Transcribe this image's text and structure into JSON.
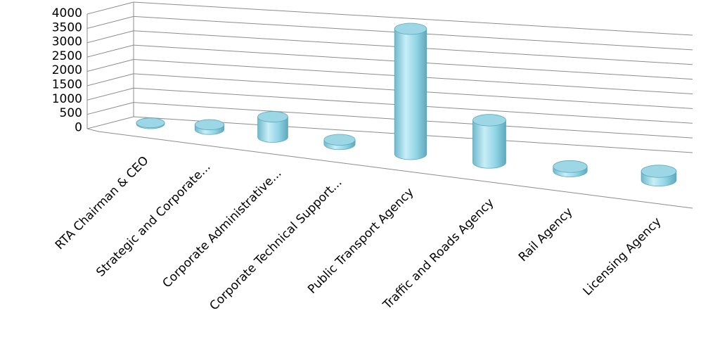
{
  "chart_data": {
    "type": "bar",
    "style": "3d-cylinder-perspective",
    "title": "",
    "xlabel": "",
    "ylabel": "",
    "ylim": [
      0,
      4000
    ],
    "yticks": [
      "4000",
      "3500",
      "3000",
      "2500",
      "2000",
      "1500",
      "1000",
      "500",
      "0"
    ],
    "grid": true,
    "legend": "none",
    "categories": [
      "RTA Chairman & CEO",
      "Strategic and Corporate...",
      "Corporate Administrative...",
      "Corporate Technical Support...",
      "Public Transport Agency",
      "Traffic and Roads Agency",
      "Rail Agency",
      "Licensing Agency"
    ],
    "values": [
      30,
      150,
      650,
      140,
      4000,
      1350,
      140,
      280
    ],
    "colors": {
      "bar_side": "#7ec9dc",
      "bar_highlight": "#c8eef7",
      "bar_top": "#9dd7e6",
      "bar_outline": "#5aa9bd",
      "grid": "#8c8c8c"
    }
  }
}
